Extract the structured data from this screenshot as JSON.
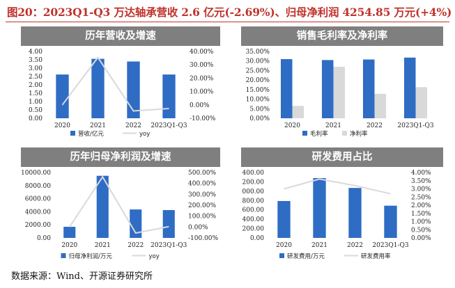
{
  "figure_title": "图20：2023Q1-Q3 万达轴承营收 2.6 亿元(-2.69%)、归母净利润 4254.85 万元(+4%)",
  "source": "数据来源：Wind、开源证券研究所",
  "colors": {
    "bar_primary": "#2f6cc4",
    "bar_secondary": "#d9d9d9",
    "line": "#d9d9d9",
    "header_bg": "#7f7f7f",
    "title": "#c0322b"
  },
  "chart_data": [
    {
      "id": "revenue",
      "type": "bar",
      "title": "历年营收及增速",
      "categories": [
        "2020",
        "2021",
        "2022",
        "2023Q1-Q3"
      ],
      "series": [
        {
          "name": "营收/亿元",
          "kind": "bar",
          "axis": "left",
          "color": "#2f6cc4",
          "values": [
            2.62,
            3.56,
            3.4,
            2.62
          ]
        },
        {
          "name": "yoy",
          "kind": "line",
          "axis": "right",
          "color": "#d9d9d9",
          "values": [
            0.0,
            35.5,
            -4.5,
            -2.69
          ]
        }
      ],
      "y_left": {
        "min": 0,
        "max": 4,
        "ticks": [
          "0.00",
          "0.50",
          "1.00",
          "1.50",
          "2.00",
          "2.50",
          "3.00",
          "3.50",
          "4.00"
        ]
      },
      "y_right": {
        "min": -10,
        "max": 40,
        "ticks": [
          "-10.00%",
          "0.00%",
          "10.00%",
          "20.00%",
          "30.00%",
          "40.00%"
        ]
      },
      "grid": false,
      "legend_position": "bottom"
    },
    {
      "id": "margin",
      "type": "bar",
      "title": "销售毛利率及净利率",
      "categories": [
        "2020",
        "2021",
        "2022",
        "2023Q1-Q3"
      ],
      "series": [
        {
          "name": "毛利率",
          "kind": "bar",
          "axis": "left",
          "color": "#2f6cc4",
          "values": [
            31.0,
            30.5,
            30.8,
            31.8
          ]
        },
        {
          "name": "净利率",
          "kind": "bar",
          "axis": "left",
          "color": "#d9d9d9",
          "values": [
            6.5,
            27.0,
            12.8,
            16.3
          ]
        }
      ],
      "y_left": {
        "min": 0,
        "max": 35,
        "ticks": [
          "0.00%",
          "5.00%",
          "10.00%",
          "15.00%",
          "20.00%",
          "25.00%",
          "30.00%",
          "35.00%"
        ]
      },
      "grid": false,
      "legend_position": "bottom"
    },
    {
      "id": "net_profit",
      "type": "bar",
      "title": "历年归母净利润及增速",
      "categories": [
        "2020",
        "2021",
        "2022",
        "2023Q1-Q3"
      ],
      "series": [
        {
          "name": "归母净利润/万元",
          "kind": "bar",
          "axis": "left",
          "color": "#2f6cc4",
          "values": [
            1700,
            9500,
            4350,
            4254.85
          ]
        },
        {
          "name": "yoy",
          "kind": "line",
          "axis": "right",
          "color": "#d9d9d9",
          "values": [
            0,
            460,
            -55,
            4
          ]
        }
      ],
      "y_left": {
        "min": 0,
        "max": 10000,
        "ticks": [
          "0.00",
          "2000.00",
          "4000.00",
          "6000.00",
          "8000.00",
          "10000.00"
        ]
      },
      "y_right": {
        "min": -100,
        "max": 500,
        "ticks": [
          "-100.00%",
          "0.00%",
          "100.00%",
          "200.00%",
          "300.00%",
          "400.00%",
          "500.00%"
        ]
      },
      "grid": false,
      "legend_position": "bottom"
    },
    {
      "id": "rd",
      "type": "bar",
      "title": "研发费用占比",
      "categories": [
        "2020",
        "2021",
        "2022",
        "2023Q1-Q3"
      ],
      "series": [
        {
          "name": "研发费用/万元",
          "kind": "bar",
          "axis": "left",
          "color": "#2f6cc4",
          "values": [
            790,
            1280,
            1070,
            690
          ]
        },
        {
          "name": "研发费用率",
          "kind": "line",
          "axis": "right",
          "color": "#d9d9d9",
          "values": [
            3.0,
            3.6,
            3.2,
            2.7
          ]
        }
      ],
      "y_left": {
        "min": 0,
        "max": 1400,
        "ticks": [
          "0.00",
          "200.00",
          "400.00",
          "600.00",
          "800.00",
          "1000.00",
          "1200.00",
          "1400.00"
        ]
      },
      "y_right": {
        "min": 0,
        "max": 4,
        "ticks": [
          "0.00%",
          "0.50%",
          "1.00%",
          "1.50%",
          "2.00%",
          "2.50%",
          "3.00%",
          "3.50%",
          "4.00%"
        ]
      },
      "grid": false,
      "legend_position": "bottom"
    }
  ]
}
